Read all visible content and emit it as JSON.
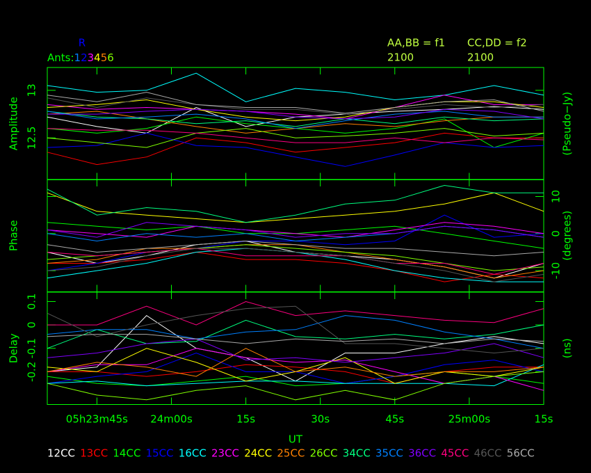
{
  "header": {
    "reference": "R",
    "reference_color": "#0000ff",
    "ants_label": "Ants:",
    "ants": [
      "1",
      "2",
      "3",
      "4",
      "5",
      "6"
    ],
    "ant_colors": [
      "#0080ff",
      "#0000ff",
      "#ff00ff",
      "#ffff00",
      "#ff8000",
      "#80ff00"
    ],
    "freq_left": "AA,BB = f1",
    "freq_right": "CC,DD = f2",
    "chan_left": "2100",
    "chan_right": "2100"
  },
  "chart_data": [
    {
      "type": "line",
      "ylabel": "Amplitude",
      "y2label": "(Pseudo−Jy)",
      "ytick_side": "left",
      "x": [
        1415,
        1425,
        1435,
        1445,
        1455,
        1465,
        1475,
        1485,
        1495,
        1505,
        1515
      ],
      "xlim": [
        1415,
        1515
      ],
      "ylim": [
        12.06,
        13.24
      ],
      "yticks": [
        12.5,
        13
      ],
      "series": [
        {
          "name": "12CC",
          "color": "#ffffff",
          "values": [
            12.72,
            12.62,
            12.55,
            12.82,
            12.62,
            12.72,
            12.75,
            12.78,
            12.8,
            12.83,
            12.8
          ]
        },
        {
          "name": "13CC",
          "color": "#ff0000",
          "values": [
            12.35,
            12.22,
            12.3,
            12.5,
            12.45,
            12.35,
            12.4,
            12.45,
            12.55,
            12.5,
            12.5
          ]
        },
        {
          "name": "14CC",
          "color": "#00ff00",
          "values": [
            12.6,
            12.55,
            12.6,
            12.72,
            12.65,
            12.6,
            12.55,
            12.6,
            12.7,
            12.4,
            12.55
          ]
        },
        {
          "name": "15CC",
          "color": "#0000ff",
          "values": [
            12.4,
            12.42,
            12.55,
            12.42,
            12.4,
            12.3,
            12.2,
            12.32,
            12.45,
            12.4,
            12.42
          ]
        },
        {
          "name": "16CC",
          "color": "#00ffff",
          "values": [
            13.05,
            12.98,
            13.0,
            13.18,
            12.88,
            13.02,
            12.98,
            12.9,
            12.95,
            13.05,
            12.95
          ]
        },
        {
          "name": "23CC",
          "color": "#ff00ff",
          "values": [
            12.85,
            12.8,
            12.82,
            12.8,
            12.78,
            12.75,
            12.7,
            12.82,
            12.95,
            12.85,
            12.85
          ]
        },
        {
          "name": "24CC",
          "color": "#ffff00",
          "values": [
            12.82,
            12.85,
            12.9,
            12.8,
            12.72,
            12.68,
            12.72,
            12.82,
            12.88,
            12.88,
            12.82
          ]
        },
        {
          "name": "25CC",
          "color": "#ff8000",
          "values": [
            12.75,
            12.78,
            12.7,
            12.62,
            12.55,
            12.6,
            12.65,
            12.62,
            12.68,
            12.72,
            12.72
          ]
        },
        {
          "name": "26CC",
          "color": "#80ff00",
          "values": [
            12.5,
            12.45,
            12.4,
            12.55,
            12.6,
            12.5,
            12.52,
            12.55,
            12.6,
            12.52,
            12.55
          ]
        },
        {
          "name": "34CC",
          "color": "#00ff80",
          "values": [
            12.78,
            12.72,
            12.7,
            12.65,
            12.68,
            12.62,
            12.7,
            12.65,
            12.72,
            12.68,
            12.7
          ]
        },
        {
          "name": "35CC",
          "color": "#0080ff",
          "values": [
            12.78,
            12.7,
            12.72,
            12.75,
            12.7,
            12.6,
            12.68,
            12.75,
            12.78,
            12.72,
            12.72
          ]
        },
        {
          "name": "36CC",
          "color": "#8000ff",
          "values": [
            12.75,
            12.75,
            12.78,
            12.8,
            12.78,
            12.72,
            12.7,
            12.72,
            12.8,
            12.78,
            12.7
          ]
        },
        {
          "name": "45CC",
          "color": "#ff0080",
          "values": [
            12.6,
            12.58,
            12.58,
            12.55,
            12.5,
            12.45,
            12.45,
            12.5,
            12.45,
            12.5,
            12.48
          ]
        },
        {
          "name": "46CC",
          "color": "#555555",
          "values": [
            12.92,
            12.82,
            12.92,
            12.85,
            12.8,
            12.8,
            12.75,
            12.8,
            12.85,
            12.82,
            12.85
          ]
        },
        {
          "name": "56CC",
          "color": "#aaaaaa",
          "values": [
            12.95,
            12.88,
            12.98,
            12.85,
            12.82,
            12.82,
            12.76,
            12.82,
            12.88,
            12.9,
            12.78
          ]
        }
      ]
    },
    {
      "type": "line",
      "ylabel": "Phase",
      "y2label": "(degrees)",
      "ytick_side": "right",
      "x": [
        1415,
        1425,
        1435,
        1445,
        1455,
        1465,
        1475,
        1485,
        1495,
        1505,
        1515
      ],
      "xlim": [
        1415,
        1515
      ],
      "ylim": [
        -15.7,
        14.6
      ],
      "yticks": [
        -10,
        0,
        10
      ],
      "series": [
        {
          "color": "#ffffff",
          "values": [
            -5,
            -8,
            -6,
            -3,
            -2,
            -5,
            -6,
            -7,
            -9,
            -12,
            -8
          ]
        },
        {
          "color": "#ff0000",
          "values": [
            -8,
            -8,
            -7,
            -5,
            -7,
            -7,
            -8,
            -10,
            -13,
            -11,
            -12
          ]
        },
        {
          "color": "#00ff00",
          "values": [
            3,
            2,
            1,
            2,
            0,
            0,
            1,
            2,
            0,
            -2,
            -4
          ]
        },
        {
          "color": "#0000ff",
          "values": [
            -10,
            -8,
            -5,
            -4,
            -2,
            -2,
            -3,
            -2,
            5,
            -1,
            0
          ]
        },
        {
          "color": "#00ffff",
          "values": [
            -12,
            -10,
            -8,
            -5,
            -4,
            -5,
            -7,
            -10,
            -12,
            -13,
            -13
          ]
        },
        {
          "color": "#ff00ff",
          "values": [
            1,
            0,
            -1,
            2,
            1,
            0,
            -1,
            1,
            3,
            2,
            0
          ]
        },
        {
          "color": "#ffff00",
          "values": [
            11,
            6,
            5,
            4,
            3,
            4,
            5,
            6,
            8,
            11,
            6
          ]
        },
        {
          "color": "#ff8000",
          "values": [
            -8,
            -7,
            -4,
            -4,
            -3,
            -3,
            -5,
            -7,
            -9,
            -12,
            -10
          ]
        },
        {
          "color": "#80ff00",
          "values": [
            -7,
            -6,
            -5,
            -4,
            -3,
            -4,
            -5,
            -6,
            -8,
            -10,
            -9
          ]
        },
        {
          "color": "#00ff80",
          "values": [
            12,
            5,
            7,
            6,
            3,
            5,
            8,
            9,
            13,
            11,
            11
          ]
        },
        {
          "color": "#0080ff",
          "values": [
            0,
            -2,
            0,
            -1,
            0,
            -2,
            -1,
            0,
            2,
            1,
            -1
          ]
        },
        {
          "color": "#8000ff",
          "values": [
            1,
            -1,
            3,
            2,
            1,
            -1,
            0,
            0,
            2,
            1,
            -1
          ]
        },
        {
          "color": "#ff0080",
          "values": [
            -5,
            -6,
            -5,
            -4,
            -6,
            -6,
            -6,
            -8,
            -8,
            -11,
            -8
          ]
        },
        {
          "color": "#555555",
          "values": [
            -10,
            -9,
            -6,
            -4,
            -4,
            -5,
            -6,
            -8,
            -10,
            -13,
            -11
          ]
        },
        {
          "color": "#aaaaaa",
          "values": [
            -3,
            -5,
            -4,
            -3,
            -2,
            -3,
            -4,
            -4,
            -5,
            -6,
            -5
          ]
        }
      ]
    },
    {
      "type": "line",
      "ylabel": "Delay",
      "y2label": "(ns)",
      "ytick_side": "left",
      "xlabel": "UT",
      "x": [
        1415,
        1425,
        1435,
        1445,
        1455,
        1465,
        1475,
        1485,
        1495,
        1505,
        1515
      ],
      "xlim": [
        1415,
        1515
      ],
      "xticks": [
        {
          "value": 1425,
          "label": "05h23m45s"
        },
        {
          "value": 1440,
          "label": "24m00s"
        },
        {
          "value": 1455,
          "label": "15s"
        },
        {
          "value": 1470,
          "label": "30s"
        },
        {
          "value": 1485,
          "label": "45s"
        },
        {
          "value": 1500,
          "label": "25m00s"
        },
        {
          "value": 1515,
          "label": "15s"
        }
      ],
      "ylim": [
        -0.34,
        0.14
      ],
      "yticks": [
        -0.2,
        -0.1,
        0,
        0.1
      ],
      "series": [
        {
          "color": "#ffffff",
          "values": [
            -0.2,
            -0.18,
            0.04,
            -0.1,
            -0.14,
            -0.24,
            -0.12,
            -0.12,
            -0.08,
            -0.05,
            -0.08
          ]
        },
        {
          "color": "#ff0000",
          "values": [
            -0.2,
            -0.2,
            -0.22,
            -0.2,
            -0.17,
            -0.18,
            -0.2,
            -0.25,
            -0.2,
            -0.18,
            -0.18
          ]
        },
        {
          "color": "#00ff00",
          "values": [
            -0.22,
            -0.25,
            -0.26,
            -0.24,
            -0.22,
            -0.26,
            -0.25,
            -0.22,
            -0.2,
            -0.22,
            -0.25
          ]
        },
        {
          "color": "#0000ff",
          "values": [
            -0.25,
            -0.22,
            -0.2,
            -0.12,
            -0.2,
            -0.2,
            -0.25,
            -0.22,
            -0.17,
            -0.15,
            -0.2
          ]
        },
        {
          "color": "#00ffff",
          "values": [
            -0.25,
            -0.24,
            -0.26,
            -0.25,
            -0.24,
            -0.24,
            -0.25,
            -0.25,
            -0.25,
            -0.26,
            -0.17
          ]
        },
        {
          "color": "#ff00ff",
          "values": [
            -0.2,
            -0.17,
            -0.17,
            -0.1,
            -0.14,
            -0.16,
            -0.15,
            -0.2,
            -0.25,
            -0.22,
            -0.28
          ]
        },
        {
          "color": "#ffff00",
          "values": [
            -0.18,
            -0.2,
            -0.1,
            -0.16,
            -0.24,
            -0.2,
            -0.14,
            -0.25,
            -0.2,
            -0.22,
            -0.18
          ]
        },
        {
          "color": "#ff8000",
          "values": [
            -0.2,
            -0.16,
            -0.18,
            -0.22,
            -0.1,
            -0.2,
            -0.18,
            -0.22,
            -0.2,
            -0.2,
            -0.18
          ]
        },
        {
          "color": "#80ff00",
          "values": [
            -0.25,
            -0.3,
            -0.32,
            -0.28,
            -0.26,
            -0.32,
            -0.28,
            -0.32,
            -0.25,
            -0.22,
            -0.2
          ]
        },
        {
          "color": "#00ff80",
          "values": [
            -0.1,
            -0.02,
            -0.08,
            -0.07,
            0.02,
            -0.05,
            -0.06,
            -0.04,
            -0.06,
            -0.04,
            0.0
          ]
        },
        {
          "color": "#0080ff",
          "values": [
            -0.04,
            -0.02,
            -0.02,
            -0.06,
            -0.03,
            -0.02,
            0.04,
            0.02,
            -0.03,
            -0.06,
            -0.1
          ]
        },
        {
          "color": "#8000ff",
          "values": [
            -0.14,
            -0.12,
            -0.08,
            -0.06,
            -0.15,
            -0.14,
            -0.16,
            -0.14,
            -0.12,
            -0.08,
            -0.14
          ]
        },
        {
          "color": "#ff0080",
          "values": [
            0.0,
            0.0,
            0.08,
            0.0,
            0.1,
            0.04,
            0.06,
            0.04,
            0.02,
            0.01,
            0.07
          ]
        },
        {
          "color": "#555555",
          "values": [
            0.05,
            -0.05,
            0.0,
            0.04,
            0.07,
            0.08,
            -0.08,
            -0.08,
            -0.1,
            -0.12,
            -0.1
          ]
        },
        {
          "color": "#aaaaaa",
          "values": [
            -0.05,
            -0.04,
            -0.04,
            -0.06,
            -0.08,
            -0.06,
            -0.07,
            -0.06,
            -0.08,
            -0.06,
            -0.07
          ]
        }
      ]
    }
  ]
}
